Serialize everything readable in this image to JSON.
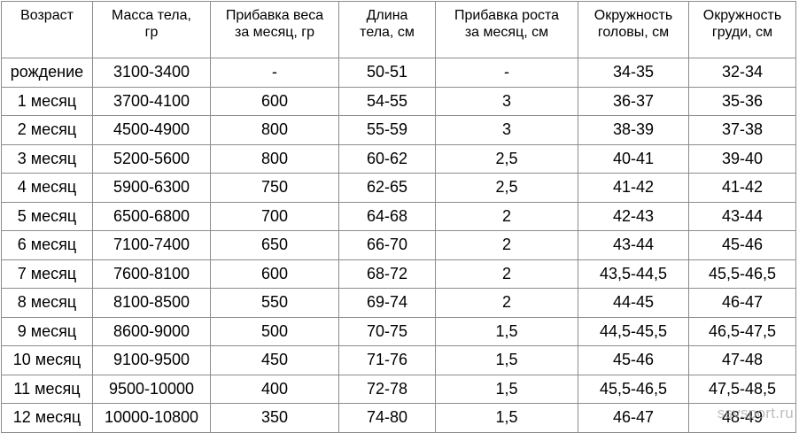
{
  "table": {
    "headers": [
      [
        "Возраст"
      ],
      [
        "Масса тела,",
        "гр"
      ],
      [
        "Прибавка веса",
        "за месяц, гр"
      ],
      [
        "Длина",
        "тела, см"
      ],
      [
        "Прибавка роста",
        "за месяц, см"
      ],
      [
        "Окружность",
        "головы, см"
      ],
      [
        "Окружность",
        "груди, см"
      ]
    ],
    "rows": [
      [
        "рождение",
        "3100-3400",
        "-",
        "50-51",
        "-",
        "34-35",
        "32-34"
      ],
      [
        "1 месяц",
        "3700-4100",
        "600",
        "54-55",
        "3",
        "36-37",
        "35-36"
      ],
      [
        "2 месяц",
        "4500-4900",
        "800",
        "55-59",
        "3",
        "38-39",
        "37-38"
      ],
      [
        "3 месяц",
        "5200-5600",
        "800",
        "60-62",
        "2,5",
        "40-41",
        "39-40"
      ],
      [
        "4 месяц",
        "5900-6300",
        "750",
        "62-65",
        "2,5",
        "41-42",
        "41-42"
      ],
      [
        "5 месяц",
        "6500-6800",
        "700",
        "64-68",
        "2",
        "42-43",
        "43-44"
      ],
      [
        "6 месяц",
        "7100-7400",
        "650",
        "66-70",
        "2",
        "43-44",
        "45-46"
      ],
      [
        "7 месяц",
        "7600-8100",
        "600",
        "68-72",
        "2",
        "43,5-44,5",
        "45,5-46,5"
      ],
      [
        "8 месяц",
        "8100-8500",
        "550",
        "69-74",
        "2",
        "44-45",
        "46-47"
      ],
      [
        "9 месяц",
        "8600-9000",
        "500",
        "70-75",
        "1,5",
        "44,5-45,5",
        "46,5-47,5"
      ],
      [
        "10 месяц",
        "9100-9500",
        "450",
        "71-76",
        "1,5",
        "45-46",
        "47-48"
      ],
      [
        "11 месяц",
        "9500-10000",
        "400",
        "72-78",
        "1,5",
        "45,5-46,5",
        "47,5-48,5"
      ],
      [
        "12 месяц",
        "10000-10800",
        "350",
        "74-80",
        "1,5",
        "46-47",
        "48-49"
      ]
    ]
  },
  "watermark": "ssvsport.ru"
}
